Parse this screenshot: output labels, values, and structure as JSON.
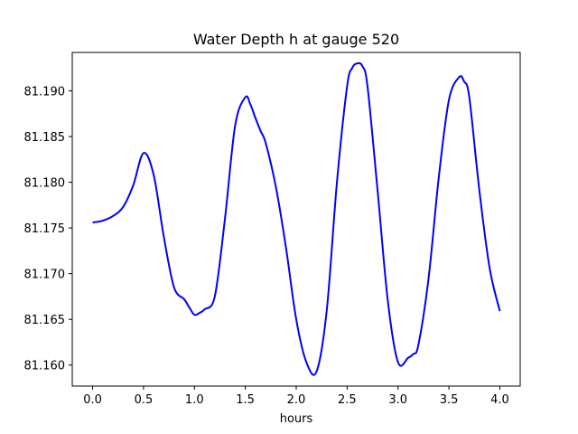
{
  "chart_data": {
    "type": "line",
    "title": "Water Depth h at gauge 520",
    "xlabel": "hours",
    "ylabel": "",
    "xlim": [
      -0.2,
      4.2
    ],
    "ylim": [
      81.1577,
      81.1942
    ],
    "xticks": [
      0.0,
      0.5,
      1.0,
      1.5,
      2.0,
      2.5,
      3.0,
      3.5,
      4.0
    ],
    "xtick_labels": [
      "0.0",
      "0.5",
      "1.0",
      "1.5",
      "2.0",
      "2.5",
      "3.0",
      "3.5",
      "4.0"
    ],
    "yticks": [
      81.16,
      81.165,
      81.17,
      81.175,
      81.18,
      81.185,
      81.19
    ],
    "ytick_labels": [
      "81.160",
      "81.165",
      "81.170",
      "81.175",
      "81.180",
      "81.185",
      "81.190"
    ],
    "grid": false,
    "series": [
      {
        "color": "#0000ff",
        "x": [
          0.0,
          0.1,
          0.2,
          0.3,
          0.4,
          0.5,
          0.6,
          0.7,
          0.8,
          0.9,
          0.95,
          1.0,
          1.05,
          1.1,
          1.2,
          1.3,
          1.4,
          1.5,
          1.55,
          1.6,
          1.65,
          1.7,
          1.8,
          1.9,
          2.0,
          2.1,
          2.2,
          2.3,
          2.4,
          2.5,
          2.55,
          2.6,
          2.65,
          2.7,
          2.8,
          2.9,
          3.0,
          3.1,
          3.15,
          3.2,
          3.3,
          3.4,
          3.5,
          3.6,
          3.65,
          3.7,
          3.8,
          3.9,
          4.0
        ],
        "y": [
          81.1756,
          81.1758,
          81.1763,
          81.1773,
          81.1797,
          81.1832,
          81.1808,
          81.174,
          81.1685,
          81.1672,
          81.1663,
          81.1655,
          81.1657,
          81.1661,
          81.1675,
          81.176,
          81.1862,
          81.1893,
          81.1885,
          81.187,
          81.1856,
          81.1843,
          81.1795,
          81.1728,
          81.165,
          81.1603,
          81.1593,
          81.166,
          81.18,
          81.1905,
          81.1925,
          81.193,
          81.1927,
          81.1905,
          81.179,
          81.167,
          81.1603,
          81.1608,
          81.1612,
          81.1622,
          81.1695,
          81.1805,
          81.189,
          81.1915,
          81.191,
          81.1893,
          81.179,
          81.1706,
          81.1659
        ]
      }
    ]
  }
}
